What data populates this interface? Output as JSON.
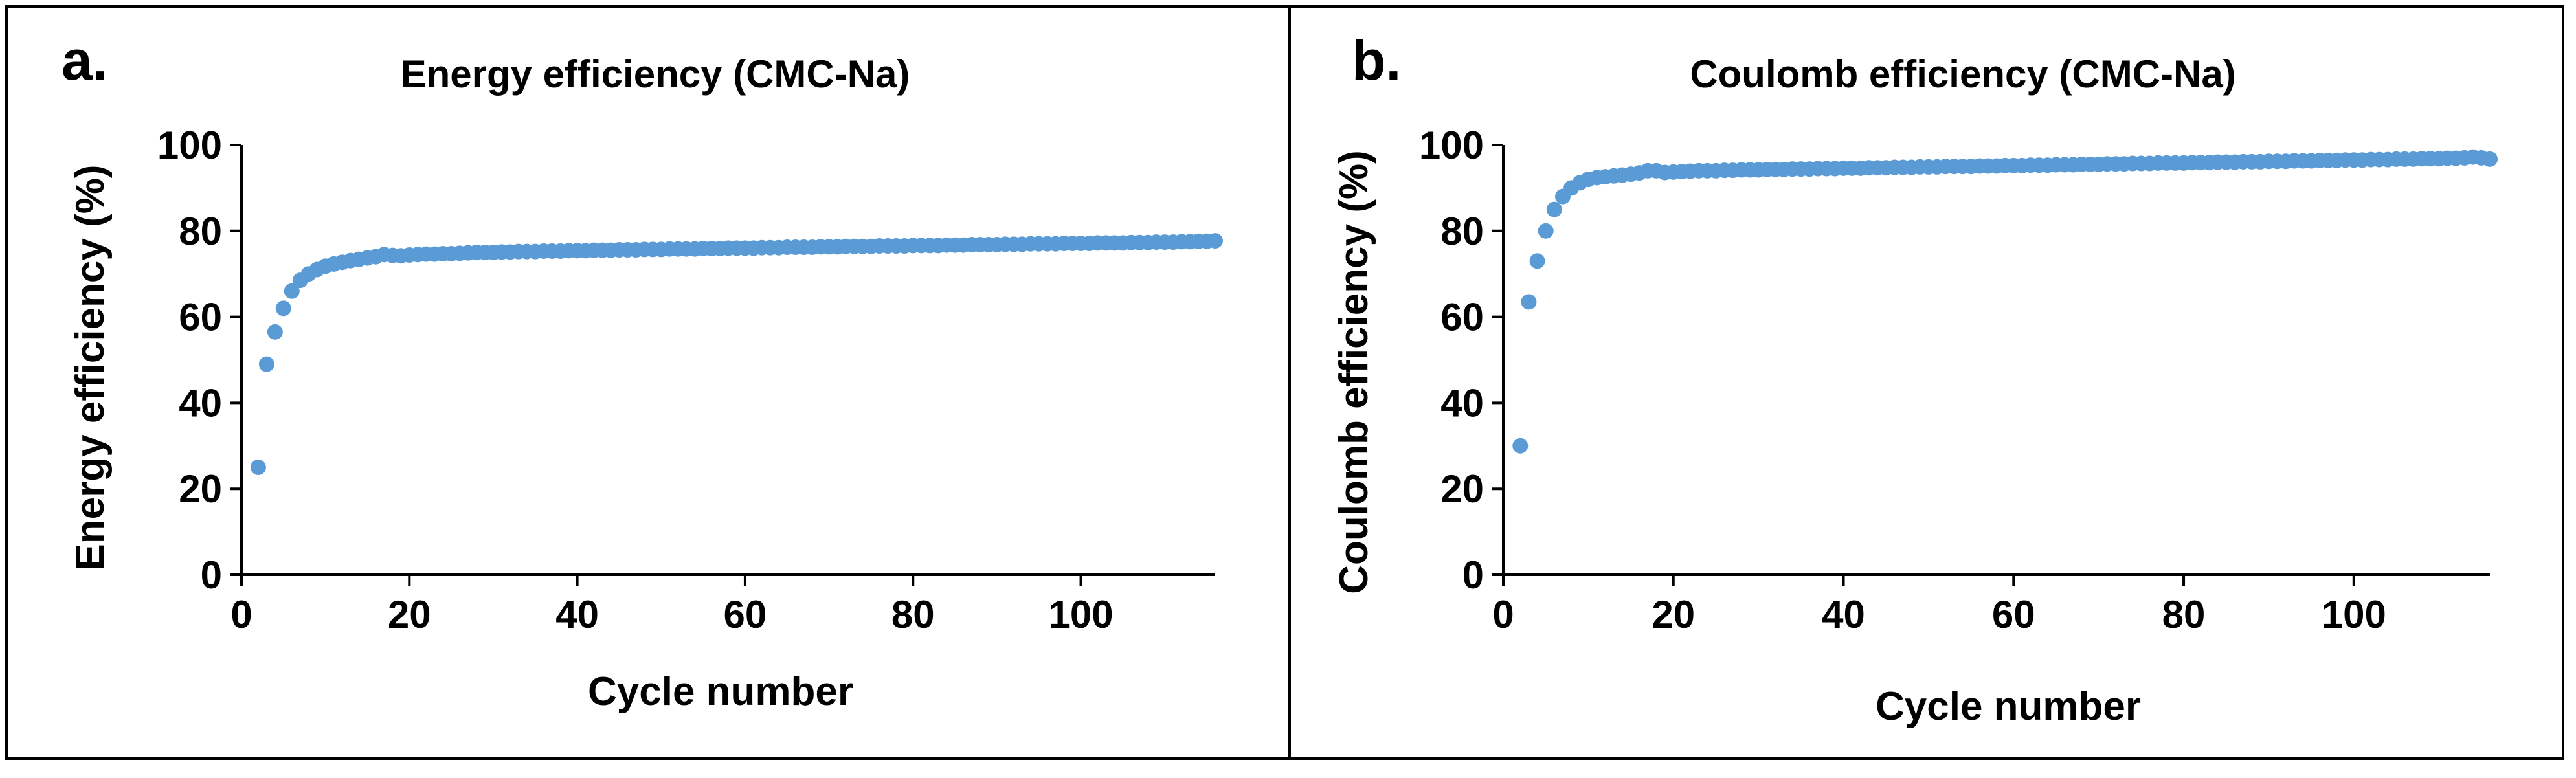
{
  "colors": {
    "marker": "#5B9BD5",
    "axis": "#000000",
    "frame": "#000000",
    "background": "#ffffff"
  },
  "chart_data": [
    {
      "panel_label": "a.",
      "type": "scatter",
      "title": "Energy efficiency (CMC-Na)",
      "xlabel": "Cycle number",
      "ylabel": "Energy efficiency (%)",
      "xlim": [
        0,
        116
      ],
      "ylim": [
        0,
        100
      ],
      "xticks": [
        0,
        20,
        40,
        60,
        80,
        100
      ],
      "yticks": [
        0,
        20,
        40,
        60,
        80,
        100
      ],
      "xtick_labels": [
        "0",
        "20",
        "40",
        "60",
        "80",
        "100"
      ],
      "ytick_labels": [
        "0",
        "20",
        "40",
        "60",
        "80",
        "100"
      ],
      "grid": false,
      "series": [
        {
          "name": "Energy efficiency",
          "x": [
            2,
            3,
            4,
            5,
            6,
            7,
            8,
            9,
            10,
            11,
            12,
            13,
            14,
            15,
            16,
            17,
            18,
            19,
            20,
            21,
            22,
            23,
            24,
            25,
            26,
            27,
            28,
            29,
            30,
            31,
            32,
            33,
            34,
            35,
            36,
            37,
            38,
            39,
            40,
            41,
            42,
            43,
            44,
            45,
            46,
            47,
            48,
            49,
            50,
            51,
            52,
            53,
            54,
            55,
            56,
            57,
            58,
            59,
            60,
            61,
            62,
            63,
            64,
            65,
            66,
            67,
            68,
            69,
            70,
            71,
            72,
            73,
            74,
            75,
            76,
            77,
            78,
            79,
            80,
            81,
            82,
            83,
            84,
            85,
            86,
            87,
            88,
            89,
            90,
            91,
            92,
            93,
            94,
            95,
            96,
            97,
            98,
            99,
            100,
            101,
            102,
            103,
            104,
            105,
            106,
            107,
            108,
            109,
            110,
            111,
            112,
            113,
            114,
            115,
            116
          ],
          "y": [
            25,
            49,
            56.5,
            62,
            66,
            68.5,
            70,
            71,
            71.8,
            72.3,
            72.7,
            73.1,
            73.4,
            73.7,
            74,
            74.5,
            74.3,
            74.2,
            74.4,
            74.5,
            74.6,
            74.6,
            74.7,
            74.7,
            74.8,
            74.9,
            75,
            75,
            75,
            75.1,
            75.1,
            75.2,
            75.2,
            75.2,
            75.3,
            75.3,
            75.3,
            75.4,
            75.4,
            75.4,
            75.5,
            75.5,
            75.5,
            75.6,
            75.6,
            75.6,
            75.7,
            75.7,
            75.7,
            75.8,
            75.8,
            75.8,
            75.8,
            75.9,
            75.9,
            75.9,
            76,
            76,
            76,
            76,
            76.1,
            76.1,
            76.1,
            76.2,
            76.2,
            76.2,
            76.2,
            76.3,
            76.3,
            76.3,
            76.4,
            76.4,
            76.4,
            76.4,
            76.5,
            76.5,
            76.5,
            76.5,
            76.6,
            76.6,
            76.6,
            76.6,
            76.7,
            76.7,
            76.7,
            76.8,
            76.8,
            76.8,
            76.8,
            76.9,
            76.9,
            76.9,
            77,
            77,
            77,
            77,
            77.1,
            77.1,
            77.1,
            77.1,
            77.2,
            77.2,
            77.2,
            77.2,
            77.3,
            77.3,
            77.3,
            77.4,
            77.4,
            77.4,
            77.5,
            77.5,
            77.6,
            77.6,
            77.7
          ]
        }
      ]
    },
    {
      "panel_label": "b.",
      "type": "scatter",
      "title": "Coulomb efficiency (CMC-Na)",
      "xlabel": "Cycle number",
      "ylabel": "Coulomb efficiency (%)",
      "xlim": [
        0,
        116
      ],
      "ylim": [
        0,
        100
      ],
      "xticks": [
        0,
        20,
        40,
        60,
        80,
        100
      ],
      "yticks": [
        0,
        20,
        40,
        60,
        80,
        100
      ],
      "xtick_labels": [
        "0",
        "20",
        "40",
        "60",
        "80",
        "100"
      ],
      "ytick_labels": [
        "0",
        "20",
        "40",
        "60",
        "80",
        "100"
      ],
      "grid": false,
      "series": [
        {
          "name": "Coulomb efficiency",
          "x": [
            2,
            3,
            4,
            5,
            6,
            7,
            8,
            9,
            10,
            11,
            12,
            13,
            14,
            15,
            16,
            17,
            18,
            19,
            20,
            21,
            22,
            23,
            24,
            25,
            26,
            27,
            28,
            29,
            30,
            31,
            32,
            33,
            34,
            35,
            36,
            37,
            38,
            39,
            40,
            41,
            42,
            43,
            44,
            45,
            46,
            47,
            48,
            49,
            50,
            51,
            52,
            53,
            54,
            55,
            56,
            57,
            58,
            59,
            60,
            61,
            62,
            63,
            64,
            65,
            66,
            67,
            68,
            69,
            70,
            71,
            72,
            73,
            74,
            75,
            76,
            77,
            78,
            79,
            80,
            81,
            82,
            83,
            84,
            85,
            86,
            87,
            88,
            89,
            90,
            91,
            92,
            93,
            94,
            95,
            96,
            97,
            98,
            99,
            100,
            101,
            102,
            103,
            104,
            105,
            106,
            107,
            108,
            109,
            110,
            111,
            112,
            113,
            114,
            115,
            116
          ],
          "y": [
            30,
            63.5,
            73,
            80,
            85,
            88,
            90,
            91.2,
            92,
            92.4,
            92.6,
            92.8,
            93,
            93.2,
            93.5,
            94,
            94,
            93.6,
            93.7,
            93.8,
            93.9,
            94,
            94,
            94,
            94.1,
            94.1,
            94.2,
            94.2,
            94.2,
            94.3,
            94.3,
            94.3,
            94.4,
            94.4,
            94.4,
            94.5,
            94.5,
            94.5,
            94.6,
            94.6,
            94.6,
            94.7,
            94.7,
            94.7,
            94.8,
            94.8,
            94.8,
            94.9,
            94.9,
            94.9,
            95,
            95,
            95,
            95,
            95.1,
            95.1,
            95.1,
            95.2,
            95.2,
            95.2,
            95.3,
            95.3,
            95.3,
            95.4,
            95.4,
            95.4,
            95.5,
            95.5,
            95.5,
            95.6,
            95.6,
            95.6,
            95.7,
            95.7,
            95.7,
            95.8,
            95.8,
            95.8,
            95.8,
            95.9,
            95.9,
            95.9,
            96,
            96,
            96,
            96.1,
            96.1,
            96.1,
            96.2,
            96.2,
            96.2,
            96.3,
            96.3,
            96.3,
            96.4,
            96.4,
            96.4,
            96.5,
            96.5,
            96.5,
            96.6,
            96.6,
            96.6,
            96.7,
            96.7,
            96.7,
            96.8,
            96.8,
            96.8,
            96.9,
            96.9,
            97,
            97.2,
            97,
            96.7
          ]
        }
      ]
    }
  ]
}
